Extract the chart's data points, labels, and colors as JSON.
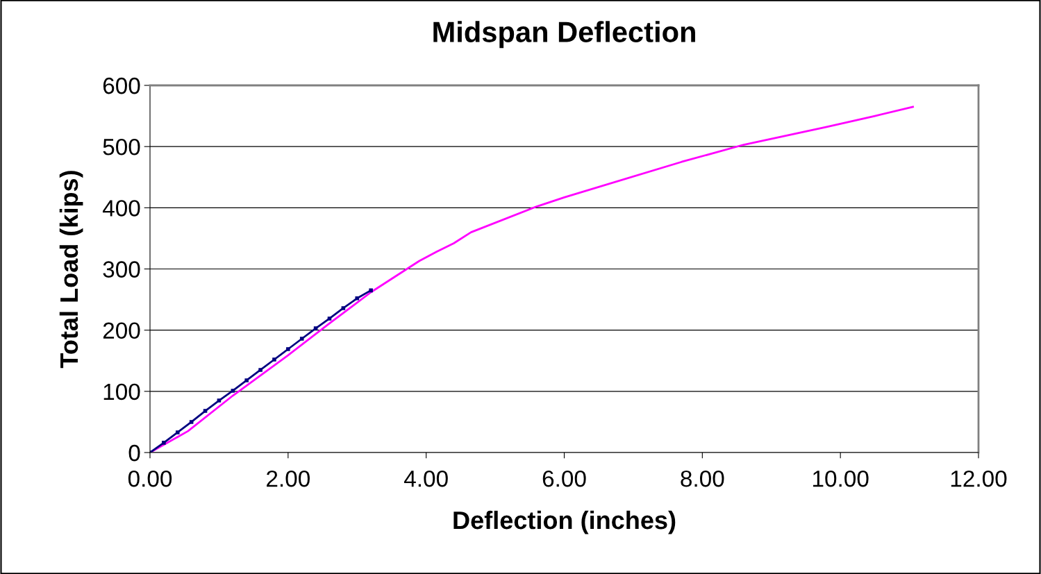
{
  "chart_data": {
    "type": "line",
    "title": "Midspan Deflection",
    "xlabel": "Deflection (inches)",
    "ylabel": "Total Load (kips)",
    "xlim": [
      0,
      12
    ],
    "ylim": [
      0,
      600
    ],
    "xticks": [
      {
        "value": 0,
        "label": "0.00"
      },
      {
        "value": 2,
        "label": "2.00"
      },
      {
        "value": 4,
        "label": "4.00"
      },
      {
        "value": 6,
        "label": "6.00"
      },
      {
        "value": 8,
        "label": "8.00"
      },
      {
        "value": 10,
        "label": "10.00"
      },
      {
        "value": 12,
        "label": "12.00"
      }
    ],
    "yticks": [
      0,
      100,
      200,
      300,
      400,
      500,
      600
    ],
    "grid": "y",
    "legend": false,
    "series": [
      {
        "color": "#ff00ff",
        "marker": "none",
        "x": [
          0,
          0.55,
          1.2,
          2.0,
          2.6,
          3.2,
          3.9,
          4.15,
          4.4,
          4.65,
          5.6,
          6.0,
          7.7,
          8.6,
          9.8,
          10.5,
          11.05
        ],
        "values": [
          0,
          35,
          93,
          159,
          211,
          262,
          313,
          328,
          342,
          360,
          402,
          417,
          475,
          503,
          532,
          550,
          565
        ]
      },
      {
        "color": "#000080",
        "marker": "square",
        "x": [
          0,
          0.2,
          0.4,
          0.6,
          0.8,
          1.0,
          1.2,
          1.4,
          1.6,
          1.8,
          2.0,
          2.2,
          2.4,
          2.6,
          2.8,
          3.0,
          3.2
        ],
        "values": [
          0,
          16,
          33,
          50,
          68,
          85,
          101,
          118,
          135,
          152,
          169,
          186,
          203,
          219,
          236,
          252,
          265
        ]
      }
    ]
  }
}
